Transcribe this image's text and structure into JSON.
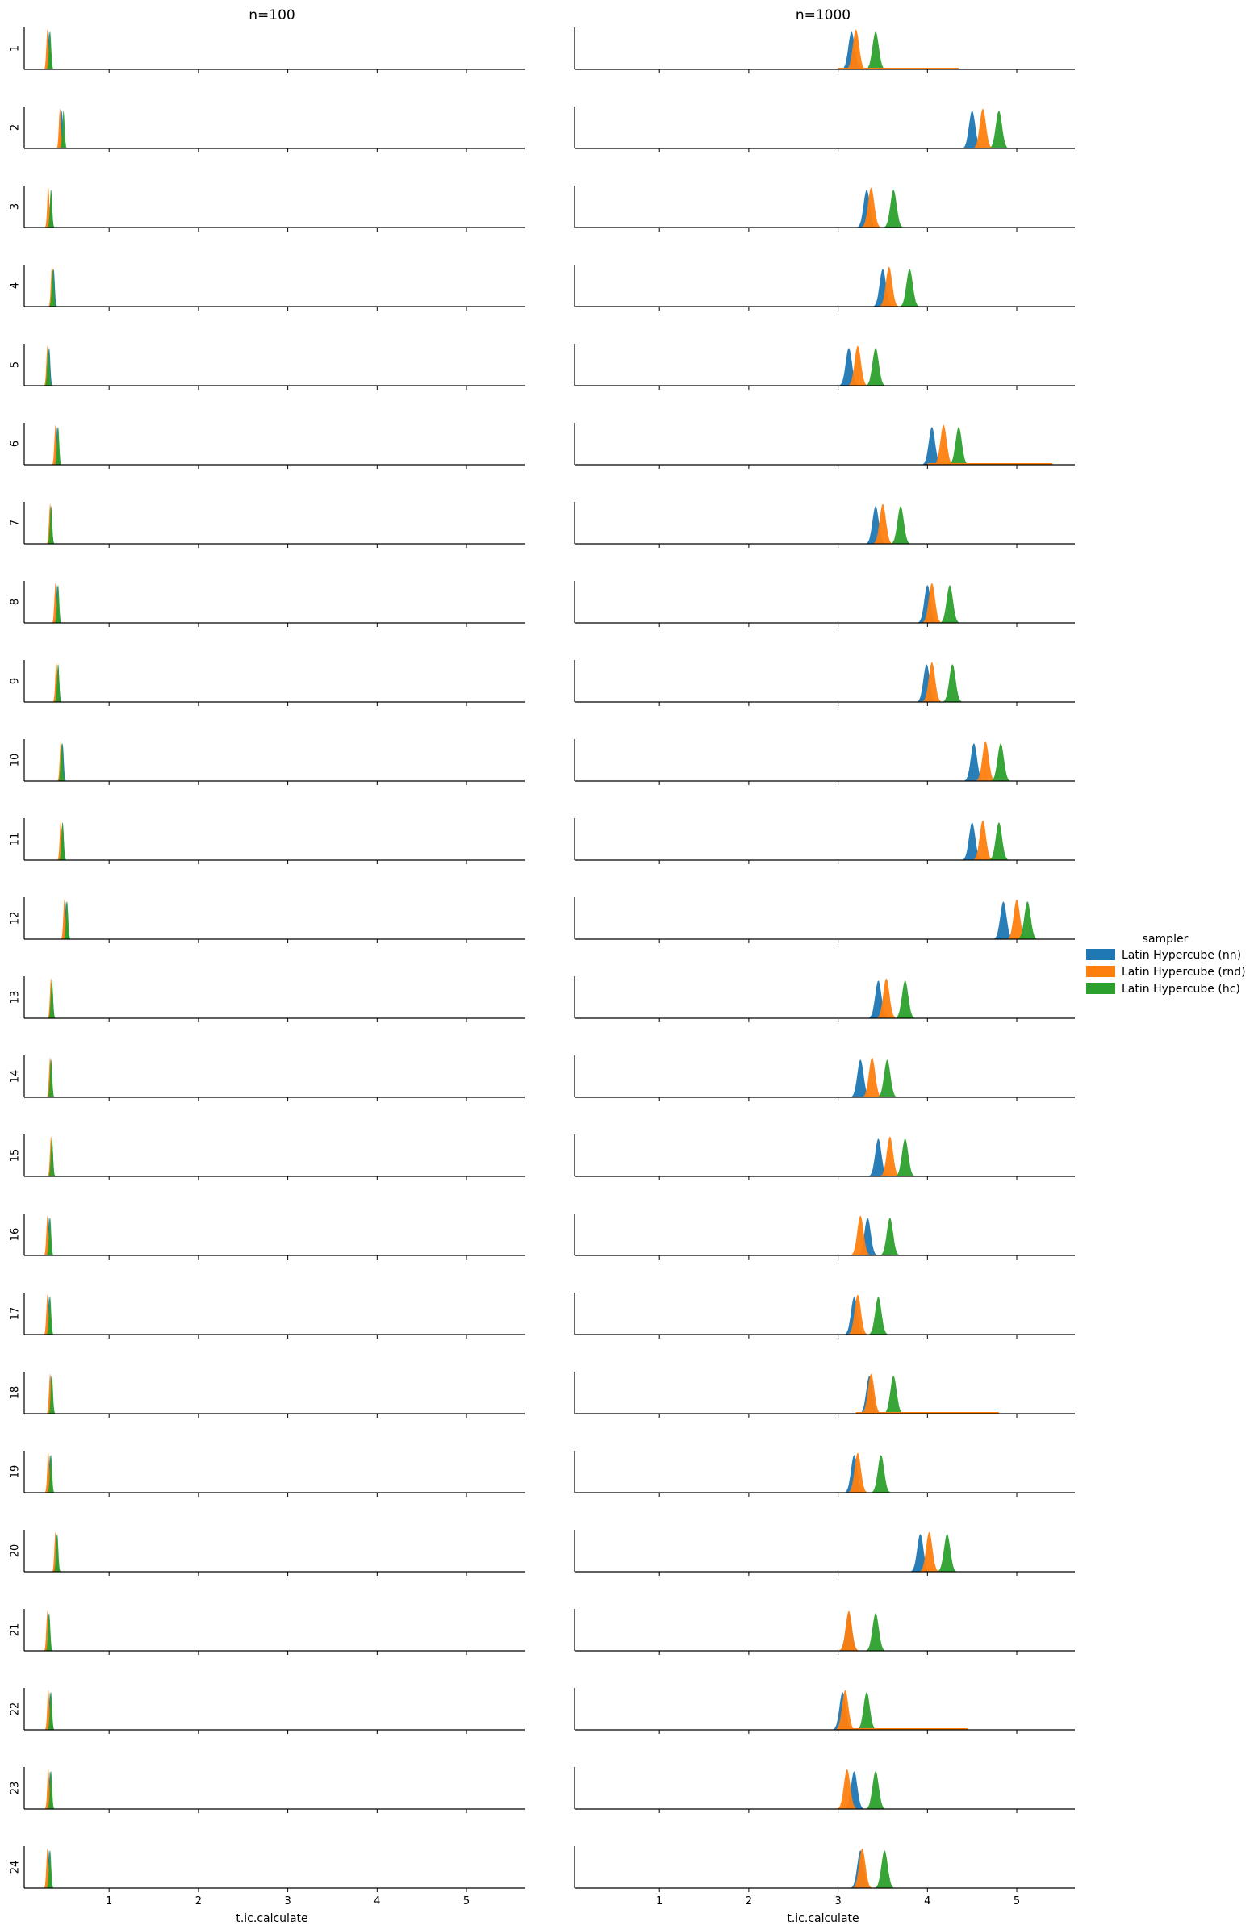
{
  "chart_data": {
    "type": "area",
    "subtype": "ridgeline-density-facet-grid",
    "column_titles": [
      "n=100",
      "n=1000"
    ],
    "row_labels": [
      "1",
      "2",
      "3",
      "4",
      "5",
      "6",
      "7",
      "8",
      "9",
      "10",
      "11",
      "12",
      "13",
      "14",
      "15",
      "16",
      "17",
      "18",
      "19",
      "20",
      "21",
      "22",
      "23",
      "24"
    ],
    "xlabel": "t.ic.calculate",
    "xlim": [
      0.05,
      5.65
    ],
    "xticks": [
      1,
      2,
      3,
      4,
      5
    ],
    "legend": {
      "title": "sampler",
      "placement": "right-center",
      "entries": [
        {
          "name": "Latin Hypercube (nn)",
          "color": "#1f77b4"
        },
        {
          "name": "Latin Hypercube (rnd)",
          "color": "#ff7f0e"
        },
        {
          "name": "Latin Hypercube (hc)",
          "color": "#2ca02c"
        }
      ]
    },
    "series_colors": [
      "#1f77b4",
      "#ff7f0e",
      "#2ca02c"
    ],
    "peak_locations_n100": {
      "nn": [
        0.33,
        0.47,
        0.35,
        0.38,
        0.33,
        0.42,
        0.35,
        0.42,
        0.43,
        0.48,
        0.48,
        0.52,
        0.36,
        0.35,
        0.36,
        0.33,
        0.33,
        0.35,
        0.34,
        0.41,
        0.32,
        0.34,
        0.34,
        0.33
      ],
      "rnd": [
        0.31,
        0.45,
        0.32,
        0.36,
        0.31,
        0.4,
        0.34,
        0.4,
        0.41,
        0.46,
        0.46,
        0.5,
        0.35,
        0.34,
        0.35,
        0.31,
        0.31,
        0.34,
        0.32,
        0.4,
        0.31,
        0.32,
        0.32,
        0.31
      ],
      "hc": [
        0.34,
        0.49,
        0.35,
        0.37,
        0.32,
        0.43,
        0.35,
        0.43,
        0.43,
        0.47,
        0.48,
        0.53,
        0.36,
        0.35,
        0.36,
        0.34,
        0.34,
        0.36,
        0.35,
        0.42,
        0.33,
        0.35,
        0.35,
        0.34
      ]
    },
    "peak_locations_n1000": {
      "nn": [
        3.15,
        4.5,
        3.32,
        3.5,
        3.12,
        4.05,
        3.42,
        4.0,
        3.99,
        4.52,
        4.5,
        4.85,
        3.45,
        3.25,
        3.45,
        3.33,
        3.18,
        3.35,
        3.18,
        3.92,
        3.12,
        3.05,
        3.18,
        3.25
      ],
      "rnd": [
        3.2,
        4.62,
        3.37,
        3.57,
        3.22,
        4.18,
        3.5,
        4.05,
        4.05,
        4.65,
        4.62,
        5.0,
        3.54,
        3.38,
        3.58,
        3.25,
        3.22,
        3.37,
        3.22,
        4.02,
        3.12,
        3.08,
        3.1,
        3.27
      ],
      "hc": [
        3.42,
        4.8,
        3.62,
        3.8,
        3.42,
        4.35,
        3.7,
        4.25,
        4.28,
        4.82,
        4.8,
        5.12,
        3.75,
        3.55,
        3.75,
        3.58,
        3.45,
        3.62,
        3.48,
        4.22,
        3.42,
        3.32,
        3.42,
        3.52
      ]
    },
    "tail_extent_n1000": {
      "6": [
        4.0,
        5.4
      ],
      "18": [
        3.2,
        4.8
      ],
      "22": [
        3.0,
        4.45
      ],
      "1": [
        3.0,
        4.35
      ]
    }
  }
}
